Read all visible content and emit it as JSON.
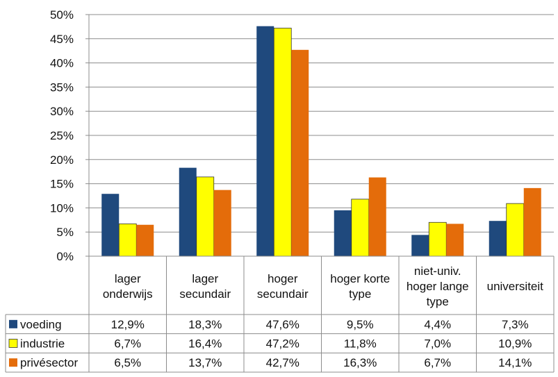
{
  "chart_data": {
    "type": "bar",
    "categories": [
      [
        "lager",
        "onderwijs"
      ],
      [
        "lager",
        "secundair"
      ],
      [
        "hoger",
        "secundair"
      ],
      [
        "hoger korte",
        "type"
      ],
      [
        "niet-univ.",
        "hoger lange",
        "type"
      ],
      [
        "universiteit"
      ]
    ],
    "series": [
      {
        "name": "voeding",
        "color": "#1F497D",
        "values": [
          12.9,
          18.3,
          47.6,
          9.5,
          4.4,
          7.3
        ],
        "labels": [
          "12,9%",
          "18,3%",
          "47,6%",
          "9,5%",
          "4,4%",
          "7,3%"
        ]
      },
      {
        "name": "industrie",
        "color": "#FFFF00",
        "values": [
          6.7,
          16.4,
          47.2,
          11.8,
          7.0,
          10.9
        ],
        "labels": [
          "6,7%",
          "16,4%",
          "47,2%",
          "11,8%",
          "7,0%",
          "10,9%"
        ]
      },
      {
        "name": "privésector",
        "color": "#E46C0A",
        "values": [
          6.5,
          13.7,
          42.7,
          16.3,
          6.7,
          14.1
        ],
        "labels": [
          "6,5%",
          "13,7%",
          "42,7%",
          "16,3%",
          "6,7%",
          "14,1%"
        ]
      }
    ],
    "yticks": [
      "0%",
      "5%",
      "10%",
      "15%",
      "20%",
      "25%",
      "30%",
      "35%",
      "40%",
      "45%",
      "50%"
    ],
    "ylim": [
      0,
      50
    ],
    "grid": true,
    "legend": "data-table",
    "title": "",
    "xlabel": "",
    "ylabel": ""
  }
}
